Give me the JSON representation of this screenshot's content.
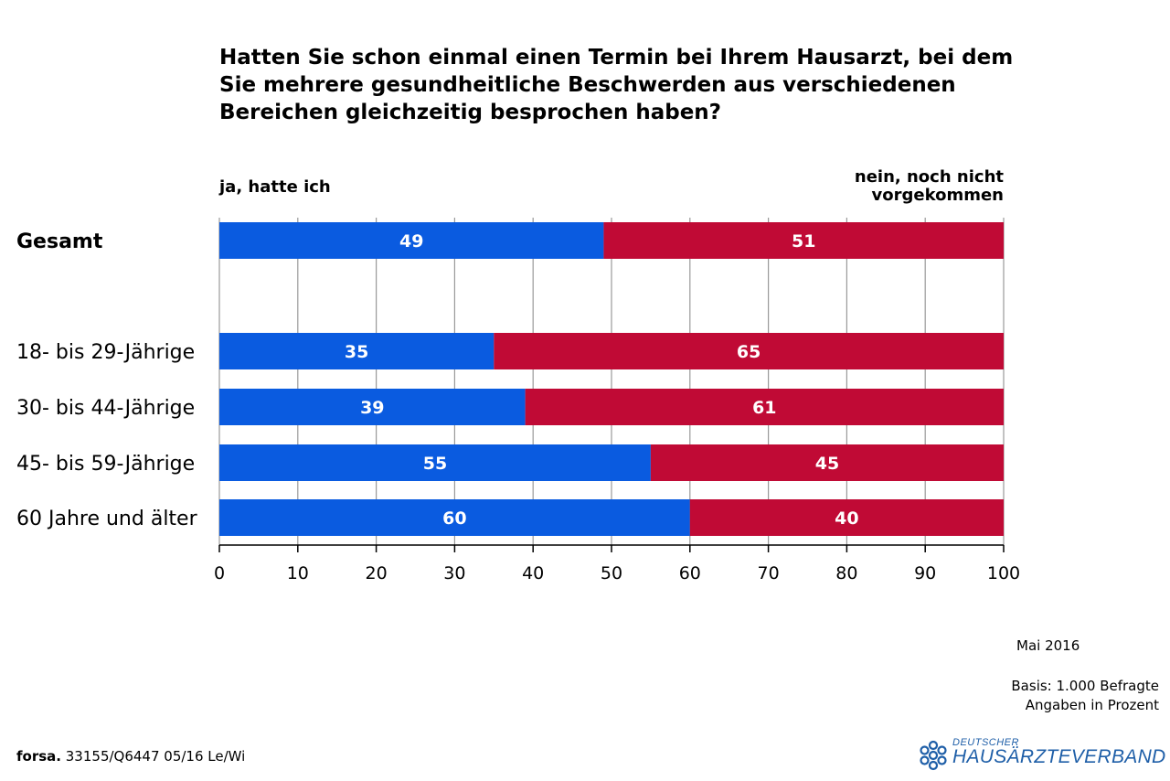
{
  "title": "Hatten Sie schon einmal einen Termin bei Ihrem Hausarzt, bei dem Sie mehrere gesundheitliche Beschwerden aus verschiedenen Bereichen gleichzeitig besprochen haben?",
  "legend": {
    "left": "ja, hatte ich",
    "right_line1": "nein, noch nicht",
    "right_line2": "vorgekommen"
  },
  "colors": {
    "ja": "#0a5be0",
    "nein": "#c00a35",
    "grid": "#999999"
  },
  "chart_data": {
    "type": "bar",
    "orientation": "horizontal",
    "stacked": true,
    "categories": [
      "Gesamt",
      "18- bis 29-Jährige",
      "30- bis 44-Jährige",
      "45- bis 59-Jährige",
      "60 Jahre und älter"
    ],
    "series": [
      {
        "name": "ja, hatte ich",
        "values": [
          49,
          35,
          39,
          55,
          60
        ]
      },
      {
        "name": "nein, noch nicht vorgekommen",
        "values": [
          51,
          65,
          61,
          45,
          40
        ]
      }
    ],
    "xlim": [
      0,
      100
    ],
    "xticks": [
      "0",
      "10",
      "20",
      "30",
      "40",
      "50",
      "60",
      "70",
      "80",
      "90",
      "100"
    ],
    "grid": true
  },
  "footer": {
    "date": "Mai 2016",
    "basis": "Basis: 1.000 Befragte",
    "unit": "Angaben in Prozent",
    "source_brand": "forsa.",
    "source_code": "33155/Q6447 05/16 Le/Wi"
  },
  "logo": {
    "small": "DEUTSCHER",
    "big": "HAUSÄRZTEVERBAND"
  }
}
